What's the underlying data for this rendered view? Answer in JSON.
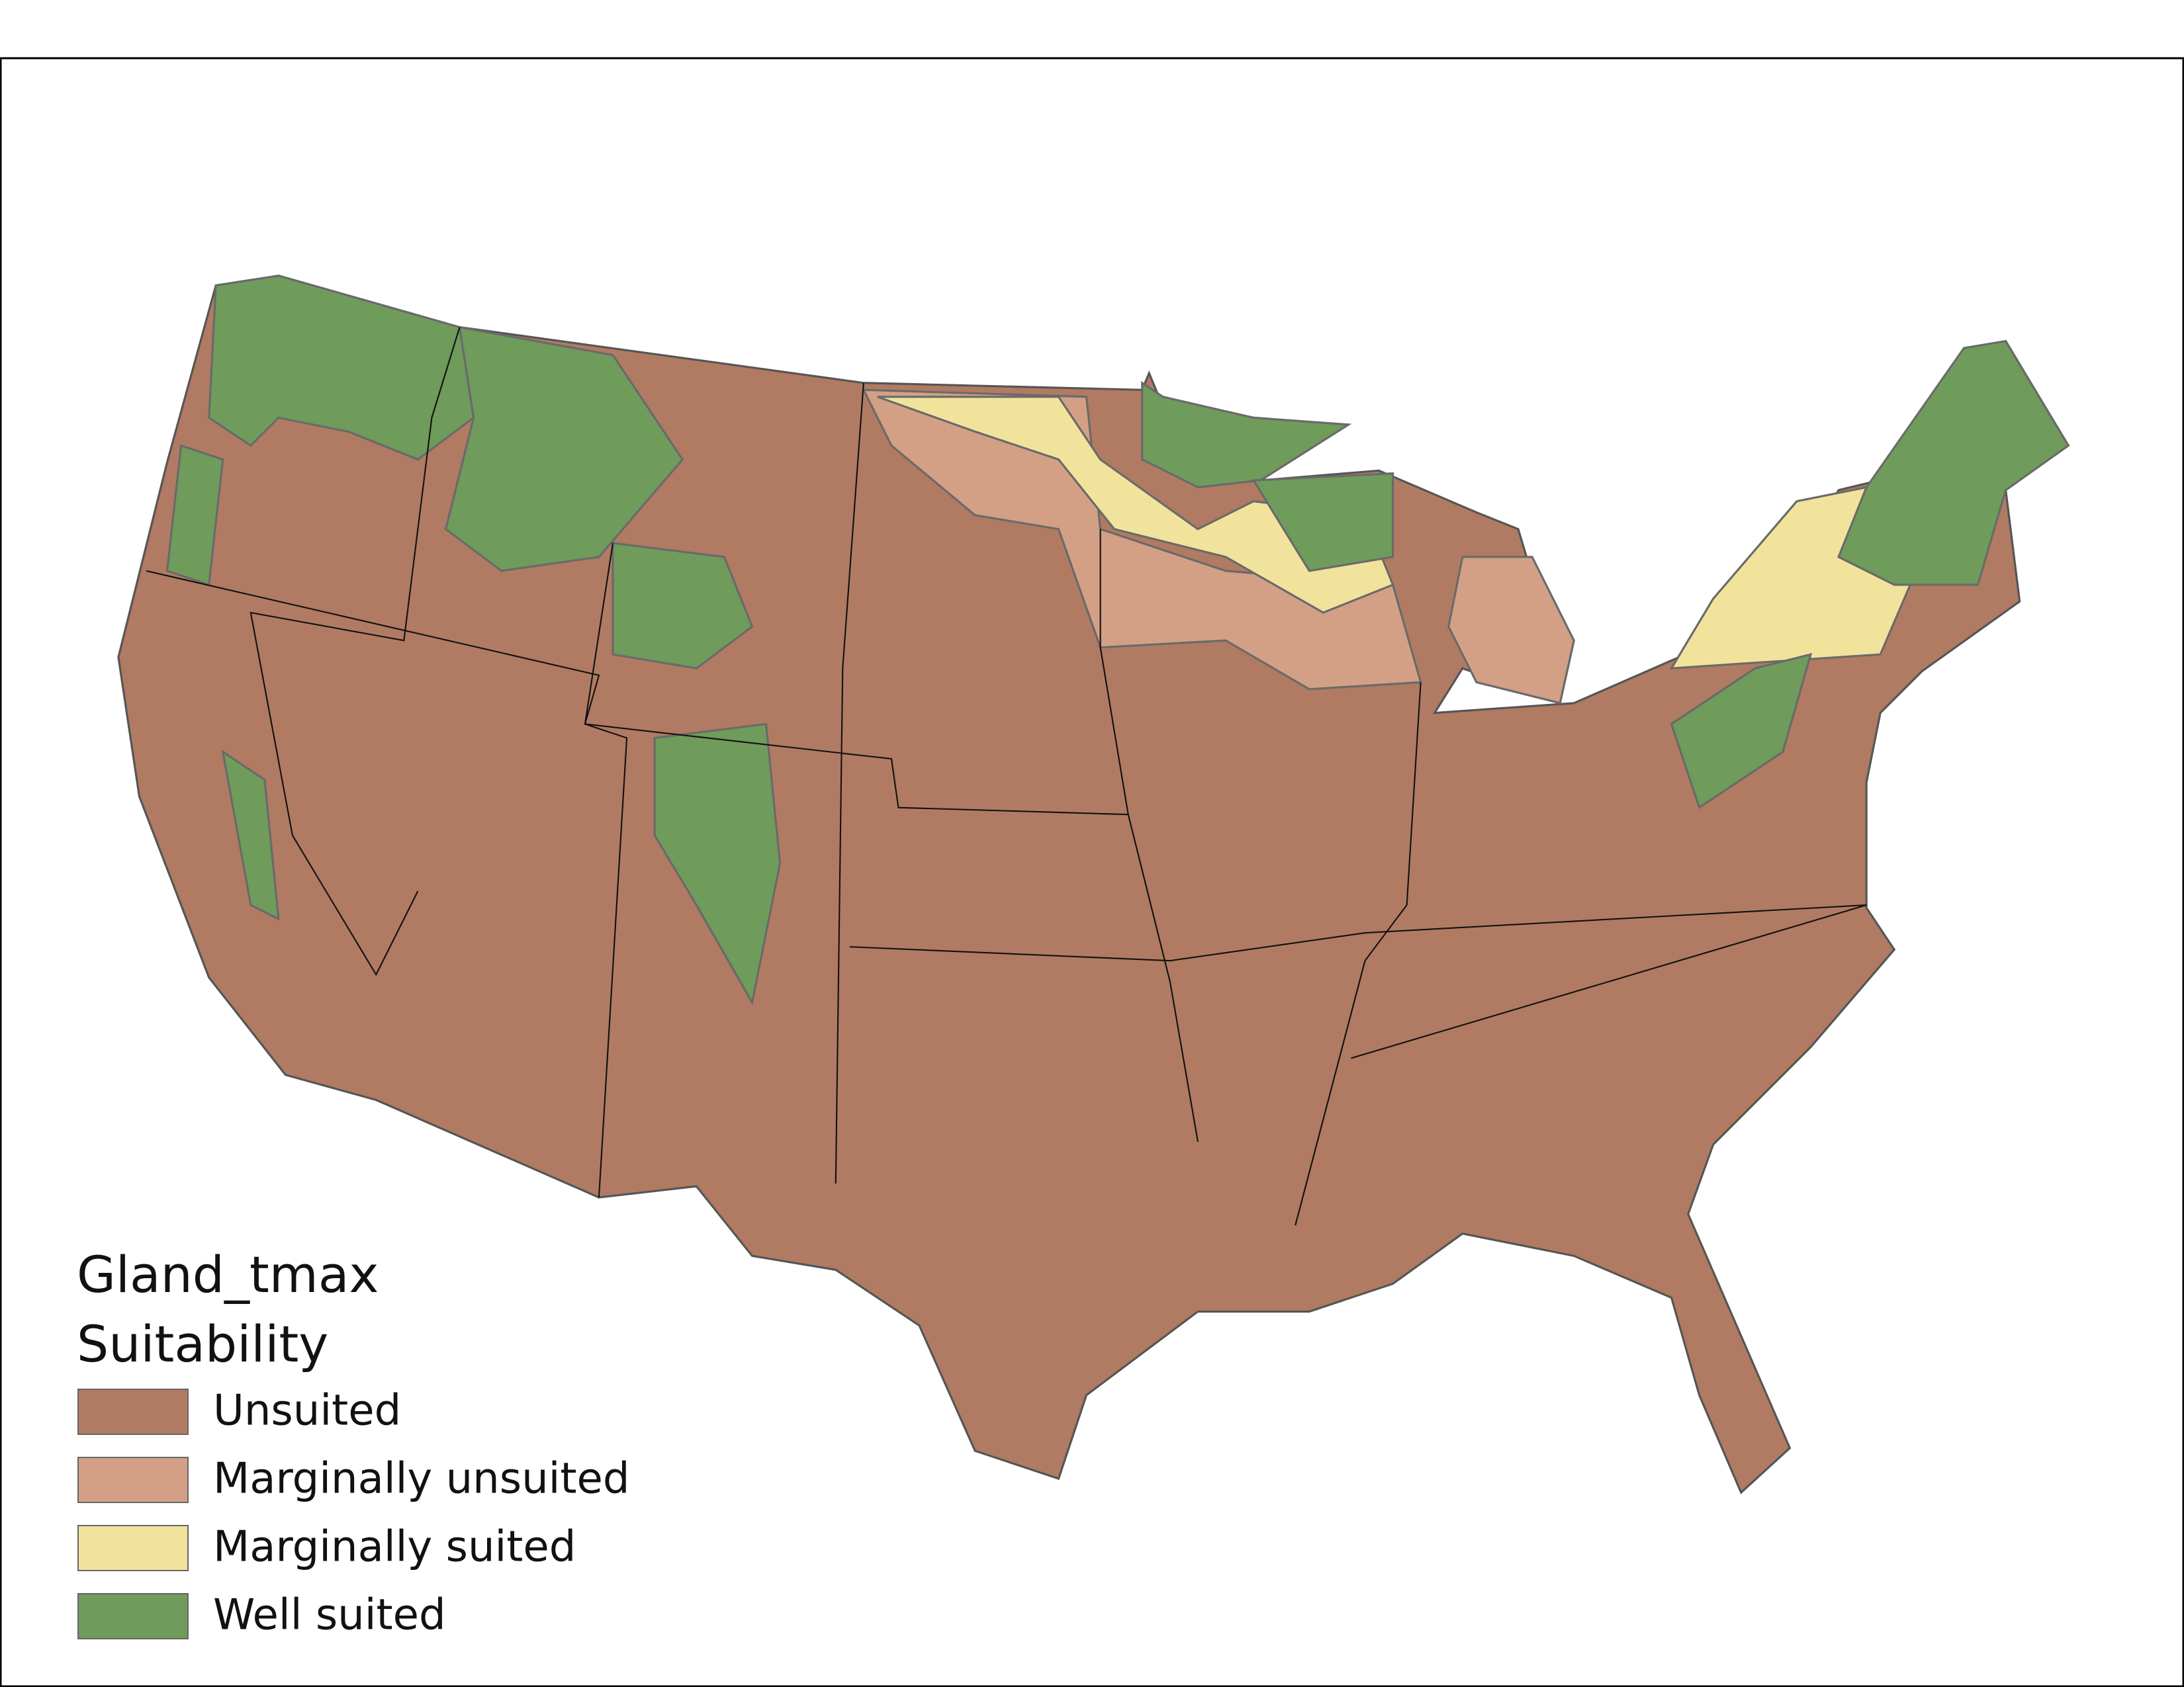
{
  "legend": {
    "title": [
      "Gland_tmax",
      "Suitability"
    ],
    "items": [
      {
        "label": "Unsuited",
        "color": "#b07b62"
      },
      {
        "label": "Marginally unsuited",
        "color": "#d3a085"
      },
      {
        "label": "Marginally suited",
        "color": "#f2e39c"
      },
      {
        "label": "Well suited",
        "color": "#6f9b5b"
      }
    ]
  }
}
